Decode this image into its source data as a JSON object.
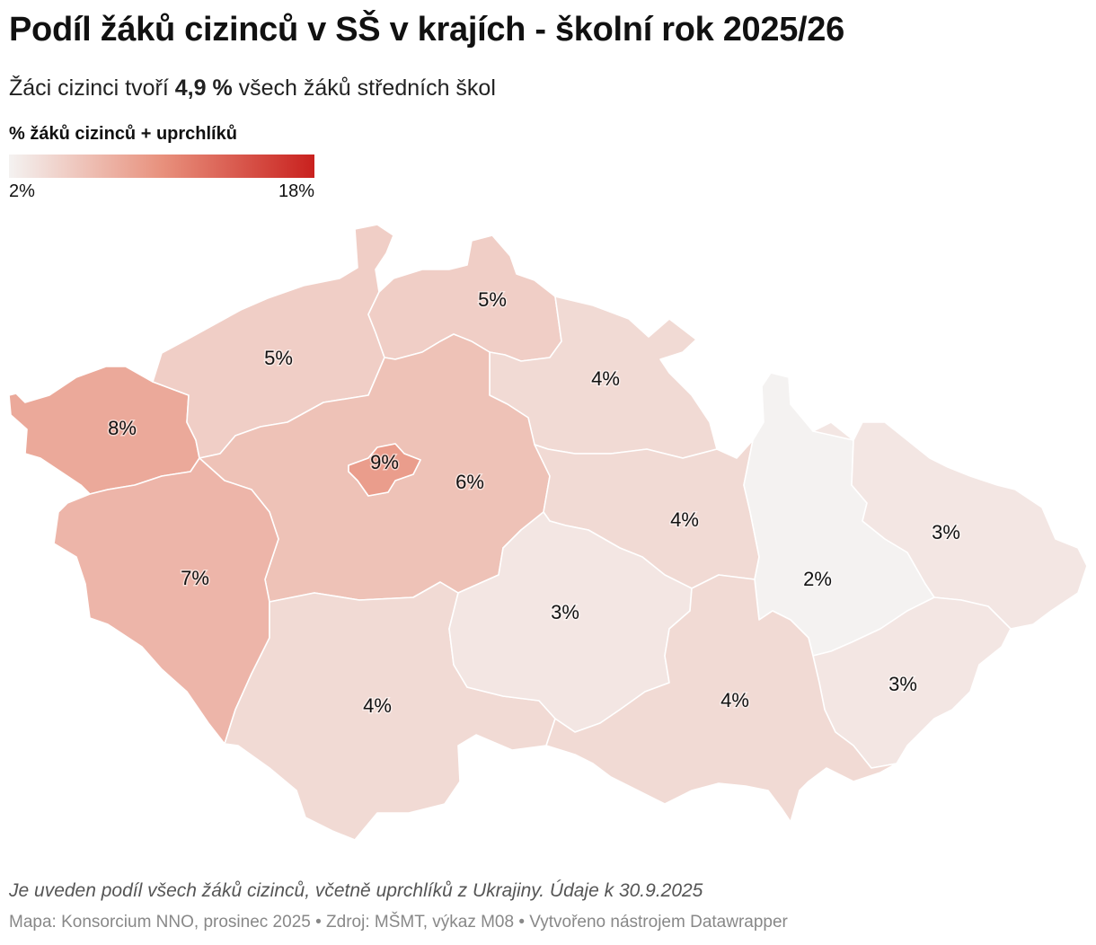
{
  "header": {
    "title": "Podíl žáků cizinců v SŠ v krajích - školní rok 2025/26",
    "subtitle_pre": "Žáci cizinci tvoří ",
    "subtitle_bold": "4,9 %",
    "subtitle_post": " všech žáků středních škol"
  },
  "legend": {
    "title": "% žáků cizinců + uprchlíků",
    "min_label": "2%",
    "max_label": "18%",
    "min": 2,
    "max": 18,
    "color_low": "#f4f2f1",
    "color_high": "#c9211e"
  },
  "regions": [
    {
      "key": "karlovarsky",
      "value": 8,
      "label": "8%"
    },
    {
      "key": "ustecky",
      "value": 5,
      "label": "5%"
    },
    {
      "key": "liberecky",
      "value": 5,
      "label": "5%"
    },
    {
      "key": "kralovehradecky",
      "value": 4,
      "label": "4%"
    },
    {
      "key": "praha",
      "value": 9,
      "label": "9%"
    },
    {
      "key": "stredocesky",
      "value": 6,
      "label": "6%"
    },
    {
      "key": "plzensky",
      "value": 7,
      "label": "7%"
    },
    {
      "key": "pardubicky",
      "value": 4,
      "label": "4%"
    },
    {
      "key": "olomoucky",
      "value": 2,
      "label": "2%"
    },
    {
      "key": "moravskoslezsky",
      "value": 3,
      "label": "3%"
    },
    {
      "key": "vysocina",
      "value": 3,
      "label": "3%"
    },
    {
      "key": "jihocesky",
      "value": 4,
      "label": "4%"
    },
    {
      "key": "jihomoravsky",
      "value": 4,
      "label": "4%"
    },
    {
      "key": "zlinsky",
      "value": 3,
      "label": "3%"
    }
  ],
  "footer": {
    "note": "Je uveden podíl všech žáků cizinců, včetně uprchlíků z Ukrajiny. Údaje k 30.9.2025",
    "source": "Mapa: Konsorcium NNO, prosinec 2025 • Zdroj: MŠMT, výkaz M08 • Vytvořeno nástrojem Datawrapper"
  }
}
